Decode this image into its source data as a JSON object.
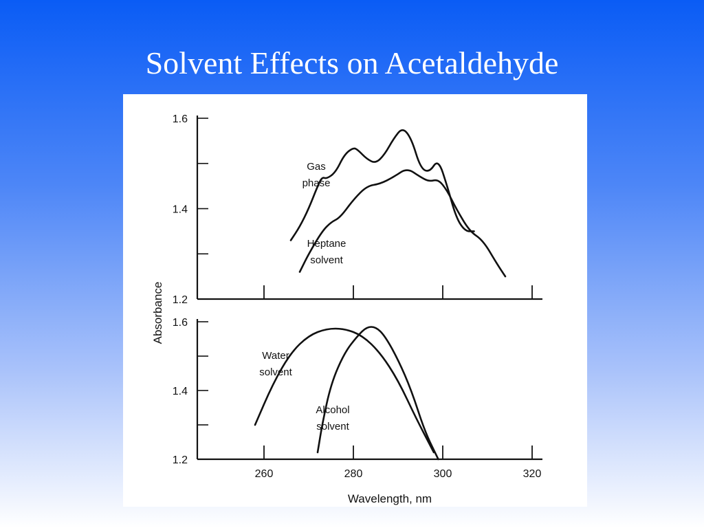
{
  "slide": {
    "title": "Solvent Effects on Acetaldehyde"
  },
  "chart_data": [
    {
      "type": "line",
      "panel": "top",
      "title": "",
      "xlabel": "",
      "ylabel": "Absorbance",
      "xlim": [
        245,
        325
      ],
      "ylim": [
        1.2,
        1.6
      ],
      "yticks": [
        "1.6",
        "1.4",
        "1.2"
      ],
      "ytick_values": [
        1.6,
        1.4,
        1.2
      ],
      "series": [
        {
          "name": "Gas phase",
          "label_lines": [
            "Gas",
            "phase"
          ],
          "x": [
            266,
            268,
            270,
            272,
            273,
            274,
            276,
            278,
            280,
            281,
            283,
            285,
            287,
            289,
            291,
            293,
            295,
            297,
            299,
            301,
            303,
            305,
            307
          ],
          "y": [
            1.33,
            1.36,
            1.4,
            1.45,
            1.47,
            1.466,
            1.48,
            1.52,
            1.535,
            1.53,
            1.51,
            1.5,
            1.52,
            1.555,
            1.58,
            1.555,
            1.49,
            1.48,
            1.51,
            1.45,
            1.38,
            1.35,
            1.35
          ]
        },
        {
          "name": "Heptane solvent",
          "label_lines": [
            "Heptane",
            "solvent"
          ],
          "x": [
            268,
            270,
            273,
            275,
            277,
            280,
            283,
            286,
            289,
            292,
            295,
            297,
            299,
            301,
            303,
            306,
            309,
            312,
            314
          ],
          "y": [
            1.26,
            1.3,
            1.35,
            1.37,
            1.38,
            1.42,
            1.45,
            1.455,
            1.47,
            1.49,
            1.47,
            1.46,
            1.465,
            1.44,
            1.4,
            1.35,
            1.33,
            1.28,
            1.25
          ]
        }
      ]
    },
    {
      "type": "line",
      "panel": "bottom",
      "title": "",
      "xlabel": "Wavelength, nm",
      "ylabel": "",
      "xlim": [
        245,
        325
      ],
      "ylim": [
        1.2,
        1.6
      ],
      "xticks": [
        "260",
        "280",
        "300",
        "320"
      ],
      "xtick_values": [
        260,
        280,
        300,
        320
      ],
      "yticks": [
        "1.6",
        "1.4",
        "1.2"
      ],
      "ytick_values": [
        1.6,
        1.4,
        1.2
      ],
      "series": [
        {
          "name": "Water solvent",
          "label_lines": [
            "Water",
            "solvent"
          ],
          "x": [
            258,
            262,
            266,
            270,
            274,
            278,
            282,
            286,
            290,
            294,
            298
          ],
          "y": [
            1.3,
            1.42,
            1.51,
            1.56,
            1.58,
            1.58,
            1.56,
            1.51,
            1.43,
            1.32,
            1.22
          ]
        },
        {
          "name": "Alcohol solvent",
          "label_lines": [
            "Alcohol",
            "solvent"
          ],
          "x": [
            272,
            273,
            275,
            278,
            281,
            283,
            285,
            287,
            290,
            293,
            296,
            299
          ],
          "y": [
            1.22,
            1.3,
            1.42,
            1.51,
            1.56,
            1.585,
            1.585,
            1.56,
            1.49,
            1.4,
            1.28,
            1.2
          ]
        }
      ]
    }
  ]
}
